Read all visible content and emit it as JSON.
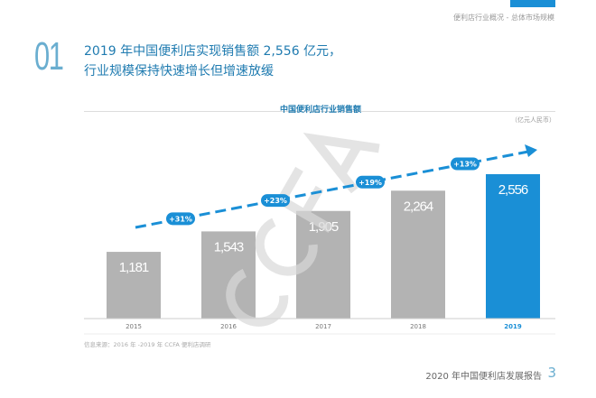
{
  "header": {
    "section": "便利店行业概况 - 总体市场规模",
    "number": "01",
    "headline_1": "2019 年中国便利店实现销售额 2,556 亿元，",
    "headline_2": "行业规模保持快速增长但增速放缓"
  },
  "footer": {
    "source": "信息来源：2016 年 -2019 年 CCFA 便利店调研",
    "report": "2020 年中国便利店发展报告",
    "page": "3"
  },
  "watermark": "CCFA",
  "colors": {
    "bar": "#b3b3b3",
    "highlight": "#1a8fd6",
    "arrow": "#1a8fd6"
  },
  "chart_data": {
    "type": "bar",
    "title": "中国便利店行业销售额",
    "unit": "（亿元人民币）",
    "categories": [
      "2015",
      "2016",
      "2017",
      "2018",
      "2019"
    ],
    "values": [
      1181,
      1543,
      1905,
      2264,
      2556
    ],
    "value_labels": [
      "1,181",
      "1,543",
      "1,905",
      "2,264",
      "2,556"
    ],
    "growth": [
      "+31%",
      "+23%",
      "+19%",
      "+13%"
    ],
    "highlight": "2019",
    "grid": false
  }
}
